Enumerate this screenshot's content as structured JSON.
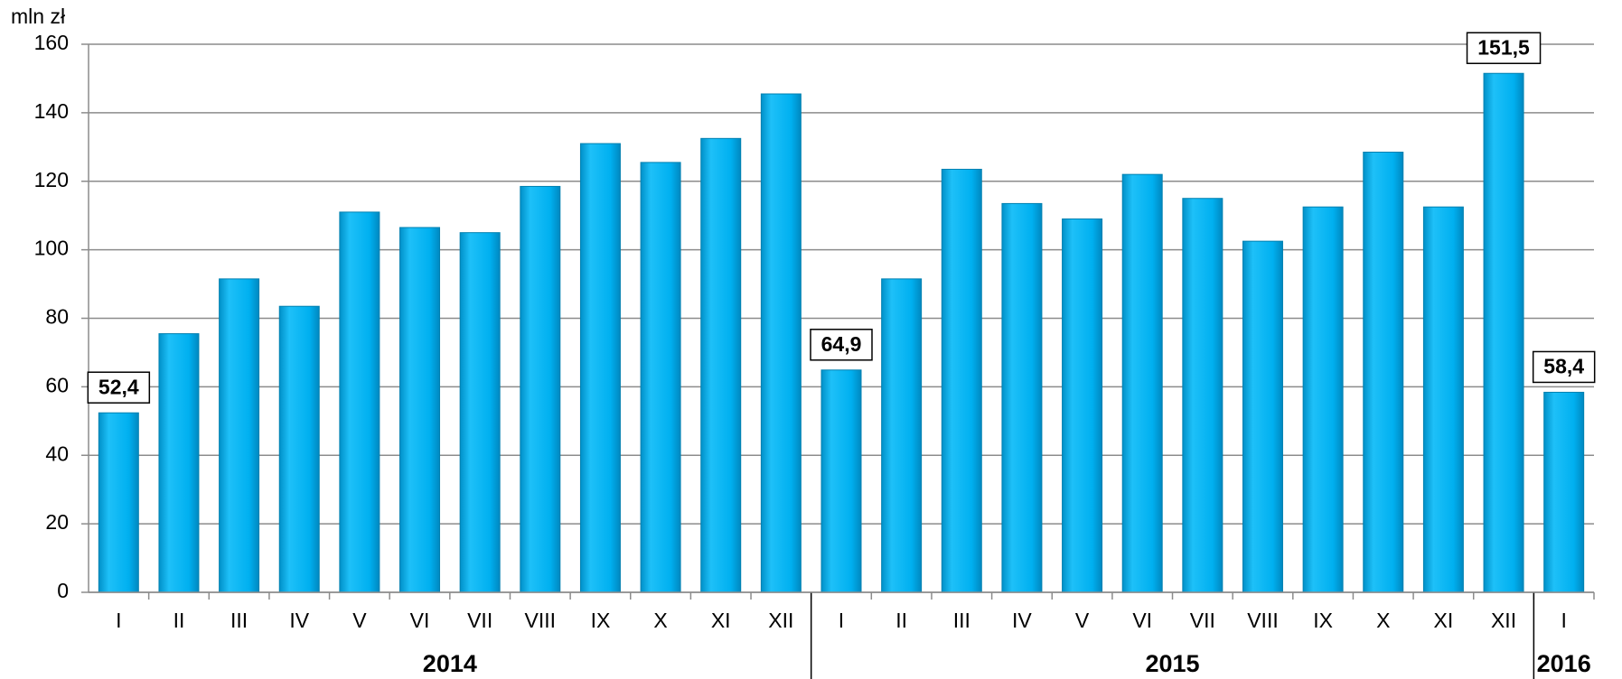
{
  "chart_data": {
    "type": "bar",
    "y_label": "mln zł",
    "groups": [
      {
        "label": "2014",
        "categories": [
          "I",
          "II",
          "III",
          "IV",
          "V",
          "VI",
          "VII",
          "VIII",
          "IX",
          "X",
          "XI",
          "XII"
        ]
      },
      {
        "label": "2015",
        "categories": [
          "I",
          "II",
          "III",
          "IV",
          "V",
          "VI",
          "VII",
          "VIII",
          "IX",
          "X",
          "XI",
          "XII"
        ]
      },
      {
        "label": "2016",
        "categories": [
          "I"
        ]
      }
    ],
    "values": [
      52.4,
      75.5,
      91.5,
      83.5,
      111,
      106.5,
      105,
      118.5,
      131,
      125.5,
      132.5,
      145.5,
      64.9,
      91.5,
      123.5,
      113.5,
      109,
      122,
      115,
      102.5,
      112.5,
      128.5,
      112.5,
      151.5,
      58.4
    ],
    "value_labels": [
      "52,4",
      null,
      null,
      null,
      null,
      null,
      null,
      null,
      null,
      null,
      null,
      null,
      "64,9",
      null,
      null,
      null,
      null,
      null,
      null,
      null,
      null,
      null,
      null,
      "151,5",
      "58,4"
    ],
    "color": "#00b0f0",
    "ylim": [
      0,
      160
    ],
    "yticks": [
      0,
      20,
      40,
      60,
      80,
      100,
      120,
      140,
      160
    ],
    "grid": true
  }
}
